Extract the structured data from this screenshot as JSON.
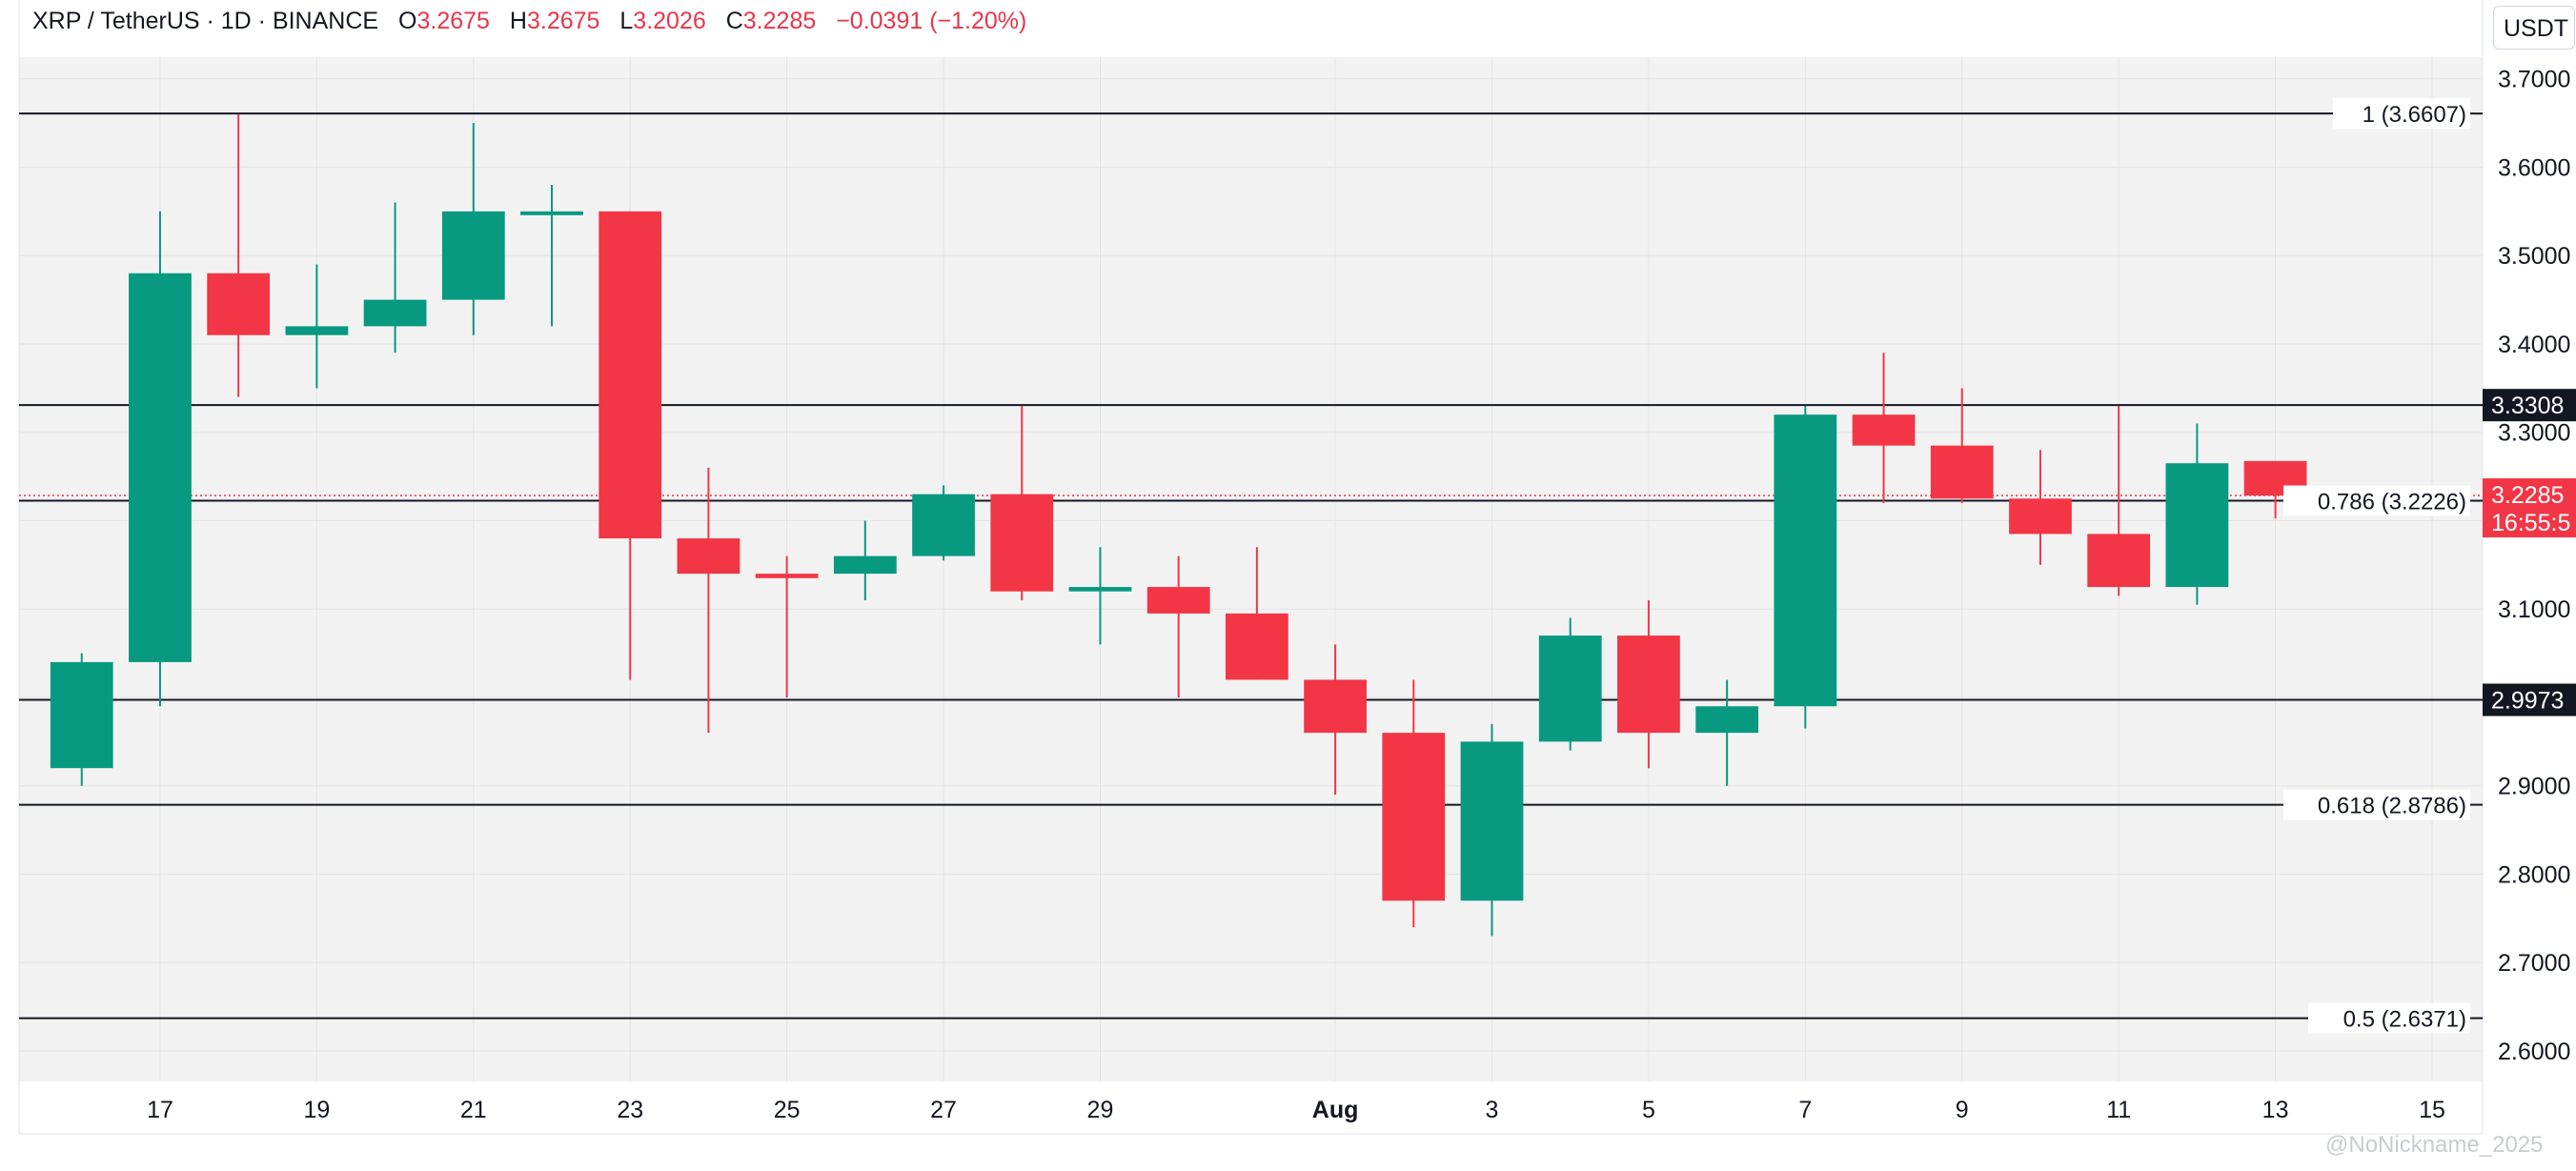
{
  "legend": {
    "symbol": "XRP / TetherUS · 1D · BINANCE",
    "open_label": "O",
    "open": "3.2675",
    "high_label": "H",
    "high": "3.2675",
    "low_label": "L",
    "low": "3.2026",
    "close_label": "C",
    "close": "3.2285",
    "change": "−0.0391 (−1.20%)"
  },
  "currency_label": "USDT",
  "watermark": "@NoNickname_2025",
  "colors": {
    "up": "#089981",
    "down": "#f23645",
    "line": "#131722",
    "plot_bg": "#f2f2f2",
    "grid": "#e4e4e4",
    "tag_dark": "#131722",
    "tag_price": "#f23645"
  },
  "chart_data": {
    "type": "candlestick",
    "ylim": [
      2.5655,
      3.7245
    ],
    "y_ticks": [
      2.6,
      2.7,
      2.8,
      2.9,
      3.0,
      3.1,
      3.2,
      3.3,
      3.4,
      3.5,
      3.6,
      3.7
    ],
    "y_tick_labels": [
      "2.6000",
      "2.7000",
      "2.8000",
      "2.9000",
      "",
      "3.1000",
      "",
      "3.3000",
      "3.4000",
      "3.5000",
      "3.6000",
      "3.7000"
    ],
    "x_day_range": [
      15.2,
      46.0
    ],
    "x_ticks": [
      {
        "day": 17,
        "label": "17"
      },
      {
        "day": 19,
        "label": "19"
      },
      {
        "day": 21,
        "label": "21"
      },
      {
        "day": 23,
        "label": "23"
      },
      {
        "day": 25,
        "label": "25"
      },
      {
        "day": 27,
        "label": "27"
      },
      {
        "day": 29,
        "label": "29"
      },
      {
        "day": 32,
        "label": "Aug",
        "bold": true
      },
      {
        "day": 34,
        "label": "3"
      },
      {
        "day": 36,
        "label": "5"
      },
      {
        "day": 38,
        "label": "7"
      },
      {
        "day": 40,
        "label": "9"
      },
      {
        "day": 42,
        "label": "11"
      },
      {
        "day": 44,
        "label": "13"
      },
      {
        "day": 46,
        "label": "15"
      }
    ],
    "candles": [
      {
        "date": "2025-07-16",
        "day": 16,
        "open": 2.92,
        "high": 3.05,
        "low": 2.9,
        "close": 3.04
      },
      {
        "date": "2025-07-17",
        "day": 17,
        "open": 3.04,
        "high": 3.55,
        "low": 2.99,
        "close": 3.48
      },
      {
        "date": "2025-07-18",
        "day": 18,
        "open": 3.48,
        "high": 3.66,
        "low": 3.34,
        "close": 3.41
      },
      {
        "date": "2025-07-19",
        "day": 19,
        "open": 3.41,
        "high": 3.49,
        "low": 3.35,
        "close": 3.42
      },
      {
        "date": "2025-07-20",
        "day": 20,
        "open": 3.42,
        "high": 3.56,
        "low": 3.39,
        "close": 3.45
      },
      {
        "date": "2025-07-21",
        "day": 21,
        "open": 3.45,
        "high": 3.65,
        "low": 3.41,
        "close": 3.55
      },
      {
        "date": "2025-07-22",
        "day": 22,
        "open": 3.55,
        "high": 3.58,
        "low": 3.42,
        "close": 3.55
      },
      {
        "date": "2025-07-23",
        "day": 23,
        "open": 3.55,
        "high": 3.55,
        "low": 3.02,
        "close": 3.18
      },
      {
        "date": "2025-07-24",
        "day": 24,
        "open": 3.18,
        "high": 3.26,
        "low": 2.96,
        "close": 3.14
      },
      {
        "date": "2025-07-25",
        "day": 25,
        "open": 3.14,
        "high": 3.16,
        "low": 3.0,
        "close": 3.135
      },
      {
        "date": "2025-07-26",
        "day": 26,
        "open": 3.14,
        "high": 3.2,
        "low": 3.11,
        "close": 3.16
      },
      {
        "date": "2025-07-27",
        "day": 27,
        "open": 3.16,
        "high": 3.24,
        "low": 3.155,
        "close": 3.23
      },
      {
        "date": "2025-07-28",
        "day": 28,
        "open": 3.23,
        "high": 3.33,
        "low": 3.11,
        "close": 3.12
      },
      {
        "date": "2025-07-29",
        "day": 29,
        "open": 3.12,
        "high": 3.17,
        "low": 3.06,
        "close": 3.125
      },
      {
        "date": "2025-07-30",
        "day": 30,
        "open": 3.125,
        "high": 3.16,
        "low": 3.0,
        "close": 3.095
      },
      {
        "date": "2025-07-31",
        "day": 31,
        "open": 3.095,
        "high": 3.17,
        "low": 3.02,
        "close": 3.02
      },
      {
        "date": "2025-08-01",
        "day": 32,
        "open": 3.02,
        "high": 3.06,
        "low": 2.89,
        "close": 2.96
      },
      {
        "date": "2025-08-02",
        "day": 33,
        "open": 2.96,
        "high": 3.02,
        "low": 2.74,
        "close": 2.77
      },
      {
        "date": "2025-08-03",
        "day": 34,
        "open": 2.77,
        "high": 2.97,
        "low": 2.73,
        "close": 2.95
      },
      {
        "date": "2025-08-04",
        "day": 35,
        "open": 2.95,
        "high": 3.09,
        "low": 2.94,
        "close": 3.07
      },
      {
        "date": "2025-08-05",
        "day": 36,
        "open": 3.07,
        "high": 3.11,
        "low": 2.92,
        "close": 2.96
      },
      {
        "date": "2025-08-06",
        "day": 37,
        "open": 2.96,
        "high": 3.02,
        "low": 2.9,
        "close": 2.99
      },
      {
        "date": "2025-08-07",
        "day": 38,
        "open": 2.99,
        "high": 3.33,
        "low": 2.965,
        "close": 3.32
      },
      {
        "date": "2025-08-08",
        "day": 39,
        "open": 3.32,
        "high": 3.39,
        "low": 3.22,
        "close": 3.285
      },
      {
        "date": "2025-08-09",
        "day": 40,
        "open": 3.285,
        "high": 3.35,
        "low": 3.22,
        "close": 3.225
      },
      {
        "date": "2025-08-10",
        "day": 41,
        "open": 3.225,
        "high": 3.28,
        "low": 3.15,
        "close": 3.185
      },
      {
        "date": "2025-08-11",
        "day": 42,
        "open": 3.185,
        "high": 3.33,
        "low": 3.115,
        "close": 3.125
      },
      {
        "date": "2025-08-12",
        "day": 43,
        "open": 3.125,
        "high": 3.31,
        "low": 3.105,
        "close": 3.265
      },
      {
        "date": "2025-08-13",
        "day": 44,
        "open": 3.2675,
        "high": 3.2675,
        "low": 3.2026,
        "close": 3.2285
      }
    ],
    "fib_levels": [
      {
        "value": 3.6607,
        "label": "1 (3.6607)"
      },
      {
        "value": 3.2226,
        "label": "0.786 (3.2226)"
      },
      {
        "value": 2.8786,
        "label": "0.618 (2.8786)"
      },
      {
        "value": 2.6371,
        "label": "0.5 (2.6371)"
      }
    ],
    "hlines": [
      {
        "value": 3.3308,
        "tag": "3.3308"
      },
      {
        "value": 2.9973,
        "tag": "2.9973"
      }
    ],
    "last_price": {
      "value": 3.2285,
      "label": "3.2285",
      "countdown": "16:55:5"
    }
  }
}
